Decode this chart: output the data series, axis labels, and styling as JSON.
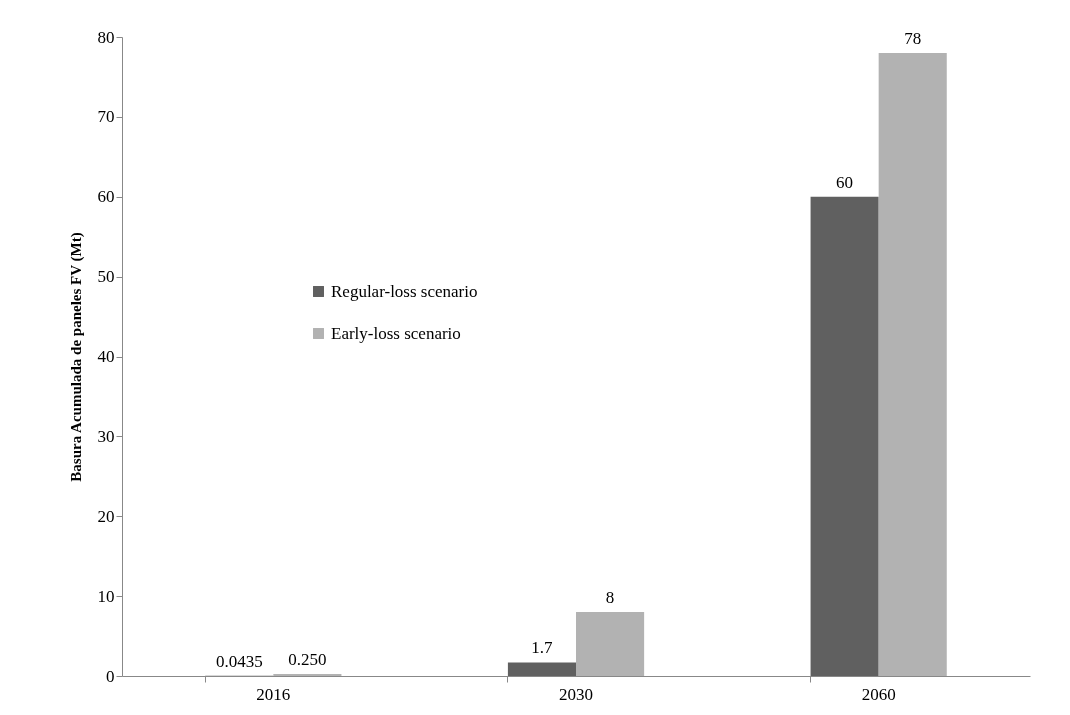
{
  "chart_data": {
    "type": "bar",
    "ylabel": "Basura Acumulada de paneles FV (Mt)",
    "categories": [
      "2016",
      "2030",
      "2060"
    ],
    "series": [
      {
        "name": "Regular-loss scenario",
        "color": "#606060",
        "values": [
          0.0435,
          1.7,
          60
        ],
        "value_labels": [
          "0.0435",
          "1.7",
          "60"
        ]
      },
      {
        "name": "Early-loss scenario",
        "color": "#b2b2b2",
        "values": [
          0.25,
          8,
          78
        ],
        "value_labels": [
          "0.250",
          "8",
          "78"
        ]
      }
    ],
    "ylim": [
      0,
      80
    ],
    "yticks": [
      0,
      10,
      20,
      30,
      40,
      50,
      60,
      70,
      80
    ],
    "grid": false,
    "legend": "left"
  }
}
